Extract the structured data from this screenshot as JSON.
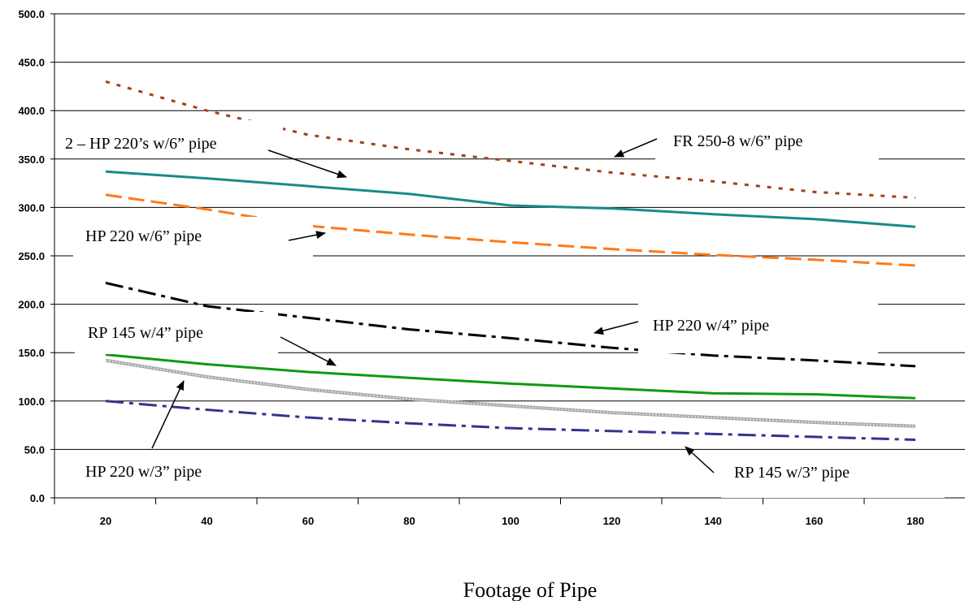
{
  "chart_data": {
    "type": "line",
    "title": "",
    "xlabel": "Footage of Pipe",
    "ylabel": "",
    "x": [
      20,
      40,
      60,
      80,
      100,
      120,
      140,
      160,
      180
    ],
    "x_tick_labels": [
      "20",
      "40",
      "60",
      "80",
      "100",
      "120",
      "140",
      "160",
      "180"
    ],
    "y_tick_labels": [
      "0.0",
      "50.0",
      "100.0",
      "150.0",
      "200.0",
      "250.0",
      "300.0",
      "350.0",
      "400.0",
      "450.0",
      "500.0"
    ],
    "ylim": [
      0,
      500
    ],
    "grid": "horizontal",
    "legend": "none",
    "series": [
      {
        "name": "FR 250-8 w/6” pipe",
        "color": "#a0401a",
        "style": "dotted",
        "values": [
          430,
          400,
          375,
          360,
          348,
          336,
          327,
          316,
          310
        ]
      },
      {
        "name": "2 – HP 220’s w/6” pipe",
        "color": "#1a8a8a",
        "style": "solid",
        "values": [
          337,
          330,
          322,
          314,
          302,
          299,
          293,
          288,
          280
        ]
      },
      {
        "name": "HP 220 w/6” pipe",
        "color": "#ff7a1a",
        "style": "dashed",
        "values": [
          313,
          298,
          281,
          272,
          264,
          257,
          251,
          246,
          240
        ]
      },
      {
        "name": "HP 220 w/4” pipe",
        "color": "#000000",
        "style": "dashdot",
        "values": [
          222,
          198,
          186,
          174,
          165,
          155,
          147,
          142,
          136
        ]
      },
      {
        "name": "RP 145 w/4” pipe",
        "color": "#119911",
        "style": "solid",
        "values": [
          148,
          138,
          130,
          124,
          118,
          113,
          108,
          107,
          103
        ]
      },
      {
        "name": "HP 220 w/3” pipe",
        "color": "#a8a8a8",
        "style": "solid",
        "values": [
          142,
          125,
          112,
          102,
          95,
          88,
          83,
          78,
          74
        ]
      },
      {
        "name": "RP 145 w/3” pipe",
        "color": "#33338f",
        "style": "dashdot",
        "values": [
          100,
          91,
          83,
          77,
          72,
          69,
          66,
          63,
          60
        ]
      }
    ],
    "annotations": [
      "FR 250-8 w/6” pipe",
      "2 – HP 220’s w/6” pipe",
      "HP 220 w/6” pipe",
      "HP 220 w/4” pipe",
      "RP 145 w/4” pipe",
      "HP 220 w/3” pipe",
      "RP 145 w/3” pipe"
    ]
  }
}
